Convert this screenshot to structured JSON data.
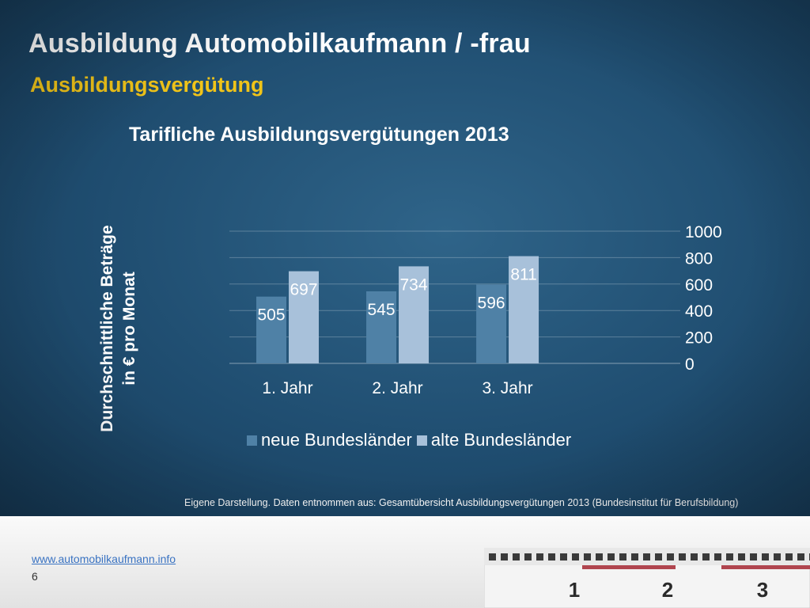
{
  "slide": {
    "title": "Ausbildung Automobilkaufmann / -frau",
    "subtitle": "Ausbildungsvergütung",
    "source_note": "Eigene Darstellung. Daten entnommen aus: Gesamtübersicht Ausbildungsvergütungen 2013 (Bundesinstitut für Berufsbildung)",
    "footer_link": "www.automobilkaufmann.info",
    "page_number": "6",
    "ruler_numbers": [
      "1",
      "2",
      "3"
    ]
  },
  "chart_data": {
    "type": "bar",
    "title": "Tarifliche Ausbildungsvergütungen 2013",
    "ylabel_lines": [
      "Durchschnittliche Beträge",
      "in € pro Monat"
    ],
    "xlabel": "",
    "categories": [
      "1. Jahr",
      "2. Jahr",
      "3. Jahr"
    ],
    "series": [
      {
        "name": "neue Bundesländer",
        "values": [
          505,
          545,
          596
        ],
        "color": "#4f81a6"
      },
      {
        "name": "alte Bundesländer",
        "values": [
          697,
          734,
          811
        ],
        "color": "#a8c1da"
      }
    ],
    "ylim": [
      0,
      1000
    ],
    "yticks": [
      0,
      200,
      400,
      600,
      800,
      1000
    ],
    "y_axis_position": "right",
    "grid": true,
    "legend_position": "bottom",
    "data_labels": true
  }
}
